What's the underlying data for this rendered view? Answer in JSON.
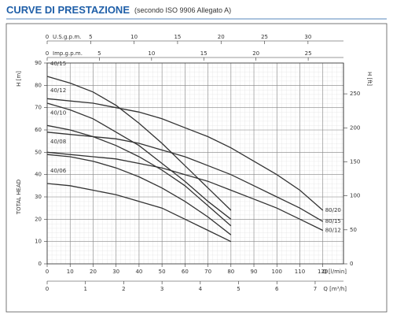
{
  "chart_data": {
    "type": "line",
    "title": "CURVE DI PRESTAZIONE",
    "subtitle": "(secondo ISO 9906 Allegato A)",
    "xlabel": "Q [l/min]",
    "ylabel": "H [m]",
    "ylabel_side": "TOTAL HEAD",
    "y2label": "H [ft]",
    "xlim": [
      0,
      129
    ],
    "xticks": [
      0,
      10,
      20,
      30,
      40,
      50,
      60,
      70,
      80,
      90,
      100,
      110,
      120
    ],
    "ylim": [
      0,
      90
    ],
    "yticks": [
      0,
      10,
      20,
      30,
      40,
      50,
      60,
      70,
      80,
      90
    ],
    "y2lim": [
      0,
      295.3
    ],
    "y2ticks": [
      0,
      50,
      100,
      150,
      200,
      250
    ],
    "top_axes": [
      {
        "label": "U.S.g.p.m.",
        "lim": [
          0,
          34.08
        ],
        "ticks": [
          0,
          5,
          10,
          15,
          20,
          25,
          30
        ]
      },
      {
        "label": "Imp.g.p.m.",
        "lim": [
          0,
          28.38
        ],
        "ticks": [
          0,
          5,
          10,
          15,
          20,
          25
        ]
      }
    ],
    "bottom_axis": {
      "label": "Q [m³/h]",
      "lim": [
        0,
        7.74
      ],
      "ticks": [
        0,
        1,
        2,
        3,
        4,
        5,
        6,
        7
      ]
    },
    "grid": true,
    "color": "#333333",
    "series": [
      {
        "name": "40/15",
        "x": [
          0,
          10,
          20,
          30,
          40,
          50,
          60,
          70,
          80
        ],
        "values": [
          84,
          81,
          77,
          71,
          63,
          54,
          44,
          34,
          24
        ]
      },
      {
        "name": "40/12",
        "x": [
          0,
          10,
          20,
          30,
          40,
          50,
          60,
          70,
          80
        ],
        "values": [
          72,
          69,
          65,
          59,
          53,
          45,
          37,
          28,
          20
        ]
      },
      {
        "name": "40/10",
        "x": [
          0,
          10,
          20,
          30,
          40,
          50,
          60,
          70,
          80
        ],
        "values": [
          62,
          60,
          57,
          53,
          48,
          42,
          35,
          26,
          17
        ]
      },
      {
        "name": "40/08",
        "x": [
          0,
          10,
          20,
          30,
          40,
          50,
          60,
          70,
          80
        ],
        "values": [
          49,
          48,
          46,
          43,
          39,
          34,
          28,
          21,
          13
        ]
      },
      {
        "name": "40/06",
        "x": [
          0,
          10,
          20,
          30,
          40,
          50,
          60,
          70,
          80
        ],
        "values": [
          36,
          35,
          33,
          31,
          28,
          25,
          20,
          15,
          10
        ]
      },
      {
        "name": "80/20",
        "x": [
          0,
          10,
          20,
          30,
          40,
          50,
          60,
          70,
          80,
          90,
          100,
          110,
          120
        ],
        "values": [
          74,
          73,
          72,
          70,
          68,
          65,
          61,
          57,
          52,
          46,
          40,
          33,
          24
        ]
      },
      {
        "name": "80/15",
        "x": [
          0,
          10,
          20,
          30,
          40,
          50,
          60,
          70,
          80,
          90,
          100,
          110,
          120
        ],
        "values": [
          59,
          58,
          57,
          56,
          54,
          51,
          48,
          44,
          40,
          35,
          30,
          25,
          19
        ]
      },
      {
        "name": "80/12",
        "x": [
          0,
          10,
          20,
          30,
          40,
          50,
          60,
          70,
          80,
          90,
          100,
          110,
          120
        ],
        "values": [
          50,
          49,
          48,
          47,
          45,
          43,
          40,
          37,
          33,
          29,
          25,
          20,
          15
        ]
      }
    ]
  }
}
